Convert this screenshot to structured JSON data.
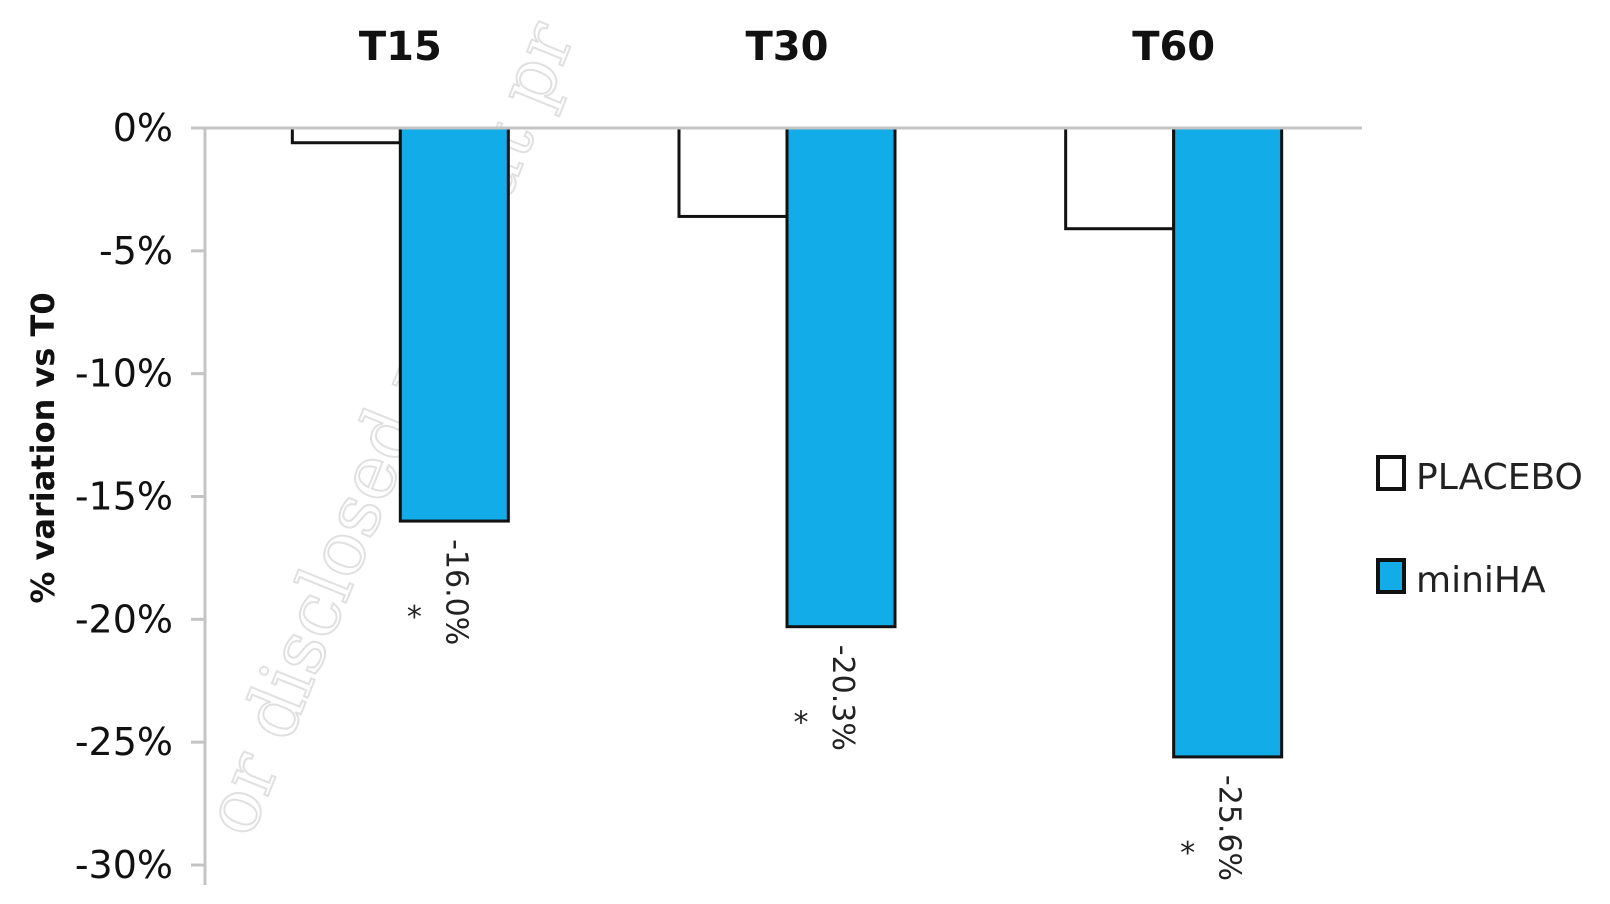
{
  "chart_data": {
    "type": "bar",
    "categories": [
      "T15",
      "T30",
      "T60"
    ],
    "series": [
      {
        "name": "PLACEBO",
        "values": [
          -0.6,
          -3.6,
          -4.1
        ],
        "color": "#ffffff"
      },
      {
        "name": "miniHA",
        "values": [
          -16.0,
          -20.3,
          -25.6
        ],
        "color": "#12ace8"
      }
    ],
    "data_labels": [
      "-16.0%",
      "-20.3%",
      "-25.6%"
    ],
    "significance_marker": "*",
    "ylabel": "% variation vs T0",
    "ylim": [
      -30,
      0
    ],
    "yticks": [
      "0%",
      "-5%",
      "-10%",
      "-15%",
      "-20%",
      "-25%",
      "-30%"
    ],
    "category_axis_position": "top",
    "legend_placement": "right",
    "grid": false
  },
  "watermark": {
    "text": "or disclosed without pr"
  }
}
